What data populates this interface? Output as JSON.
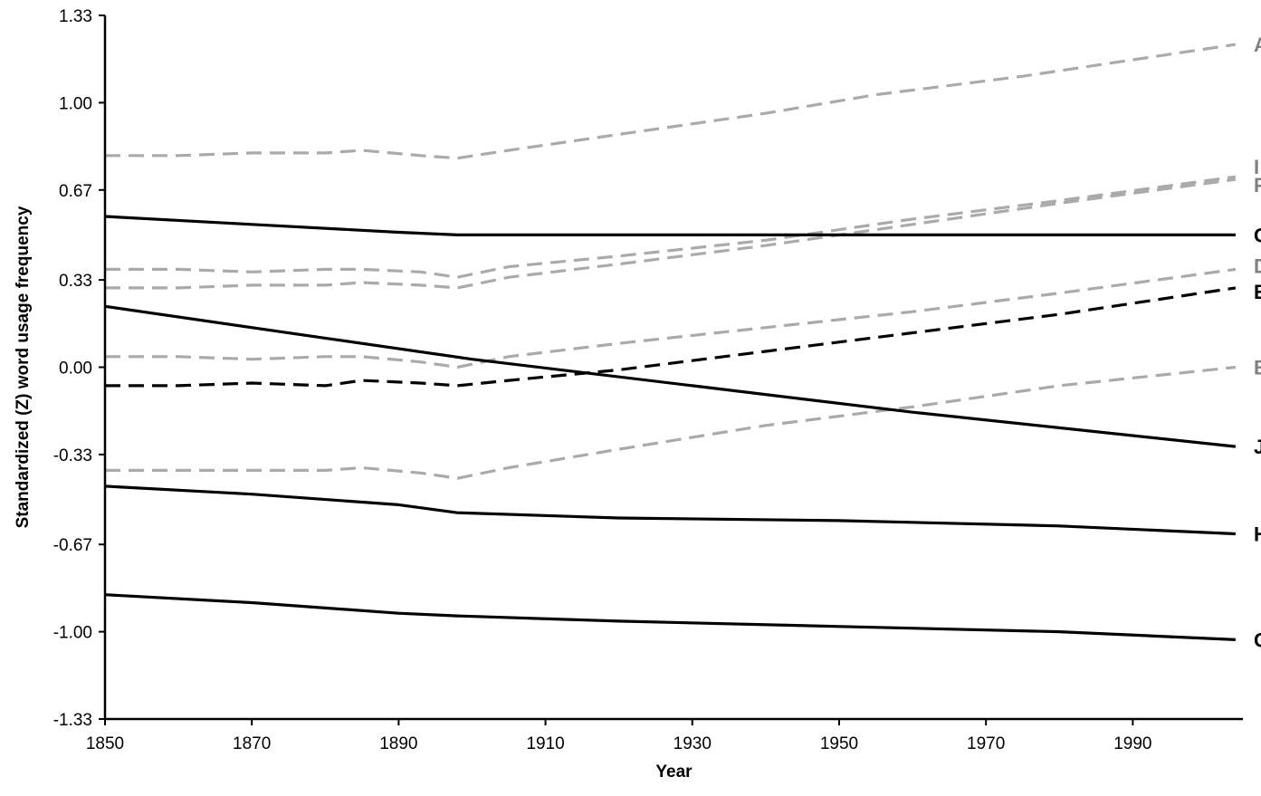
{
  "chart_data": {
    "type": "line",
    "title": "",
    "xlabel": "Year",
    "ylabel": "Standardized (Z) word usage frequency",
    "xlim": [
      1850,
      2005
    ],
    "ylim": [
      -1.33,
      1.33
    ],
    "x_ticks": [
      1850,
      1870,
      1890,
      1910,
      1930,
      1950,
      1970,
      1990
    ],
    "x_tick_labels": [
      "1850",
      "1870",
      "1890",
      "1910",
      "1930",
      "1950",
      "1970",
      "1990"
    ],
    "y_ticks": [
      1.33,
      1.0,
      0.67,
      0.33,
      0.0,
      -0.33,
      -0.67,
      -1.0,
      -1.33
    ],
    "y_tick_labels": [
      "1.33",
      "1.00",
      "0.67",
      "0.33",
      "0.00",
      "-0.33",
      "-0.67",
      "-1.00",
      "-1.33"
    ],
    "grid": false,
    "legend": "none",
    "series": [
      {
        "name": "A",
        "color": "#aaaaaa",
        "label_color": "#808080",
        "dash": true,
        "x": [
          1850,
          1860,
          1870,
          1880,
          1885,
          1893,
          1898,
          1905,
          1920,
          1940,
          1955,
          1975,
          2004
        ],
        "values": [
          0.8,
          0.8,
          0.81,
          0.81,
          0.82,
          0.8,
          0.79,
          0.82,
          0.88,
          0.96,
          1.03,
          1.1,
          1.22
        ]
      },
      {
        "name": "I",
        "color": "#aaaaaa",
        "label_color": "#808080",
        "dash": true,
        "x": [
          1850,
          1860,
          1870,
          1880,
          1885,
          1893,
          1898,
          1905,
          1920,
          1940,
          1960,
          1980,
          2004
        ],
        "values": [
          0.37,
          0.37,
          0.36,
          0.37,
          0.37,
          0.36,
          0.34,
          0.38,
          0.42,
          0.48,
          0.56,
          0.63,
          0.72
        ]
      },
      {
        "name": "F",
        "color": "#aaaaaa",
        "label_color": "#808080",
        "dash": true,
        "x": [
          1850,
          1860,
          1870,
          1880,
          1885,
          1893,
          1898,
          1905,
          1920,
          1940,
          1960,
          1980,
          2004
        ],
        "values": [
          0.3,
          0.3,
          0.31,
          0.31,
          0.32,
          0.31,
          0.3,
          0.34,
          0.39,
          0.46,
          0.54,
          0.62,
          0.71
        ]
      },
      {
        "name": "G",
        "color": "#000000",
        "label_color": "#000000",
        "dash": false,
        "x": [
          1850,
          1870,
          1890,
          1898,
          1920,
          1950,
          1980,
          2004
        ],
        "values": [
          0.57,
          0.54,
          0.51,
          0.5,
          0.5,
          0.5,
          0.5,
          0.5
        ]
      },
      {
        "name": "D",
        "color": "#aaaaaa",
        "label_color": "#808080",
        "dash": true,
        "x": [
          1850,
          1860,
          1870,
          1880,
          1885,
          1893,
          1898,
          1905,
          1920,
          1940,
          1960,
          1980,
          2004
        ],
        "values": [
          0.04,
          0.04,
          0.03,
          0.04,
          0.04,
          0.02,
          0.0,
          0.04,
          0.09,
          0.15,
          0.21,
          0.28,
          0.37
        ]
      },
      {
        "name": "E",
        "color": "#000000",
        "label_color": "#000000",
        "dash": true,
        "x": [
          1850,
          1860,
          1870,
          1880,
          1885,
          1893,
          1898,
          1905,
          1920,
          1940,
          1960,
          1980,
          2004
        ],
        "values": [
          -0.07,
          -0.07,
          -0.06,
          -0.07,
          -0.05,
          -0.06,
          -0.07,
          -0.05,
          -0.01,
          0.06,
          0.13,
          0.2,
          0.3
        ]
      },
      {
        "name": "B",
        "color": "#aaaaaa",
        "label_color": "#808080",
        "dash": true,
        "x": [
          1850,
          1860,
          1870,
          1880,
          1885,
          1893,
          1898,
          1905,
          1920,
          1940,
          1960,
          1980,
          2004
        ],
        "values": [
          -0.39,
          -0.39,
          -0.39,
          -0.39,
          -0.38,
          -0.4,
          -0.42,
          -0.38,
          -0.31,
          -0.22,
          -0.15,
          -0.07,
          0.0
        ]
      },
      {
        "name": "J",
        "color": "#000000",
        "label_color": "#000000",
        "dash": false,
        "x": [
          1850,
          1880,
          1900,
          1930,
          1960,
          2004
        ],
        "values": [
          0.23,
          0.11,
          0.03,
          -0.07,
          -0.17,
          -0.3
        ]
      },
      {
        "name": "H",
        "color": "#000000",
        "label_color": "#000000",
        "dash": false,
        "x": [
          1850,
          1870,
          1890,
          1898,
          1920,
          1950,
          1980,
          2004
        ],
        "values": [
          -0.45,
          -0.48,
          -0.52,
          -0.55,
          -0.57,
          -0.58,
          -0.6,
          -0.63
        ]
      },
      {
        "name": "C",
        "color": "#000000",
        "label_color": "#000000",
        "dash": false,
        "x": [
          1850,
          1870,
          1890,
          1898,
          1920,
          1950,
          1980,
          2004
        ],
        "values": [
          -0.86,
          -0.89,
          -0.93,
          -0.94,
          -0.96,
          -0.98,
          -1.0,
          -1.03
        ]
      }
    ]
  }
}
